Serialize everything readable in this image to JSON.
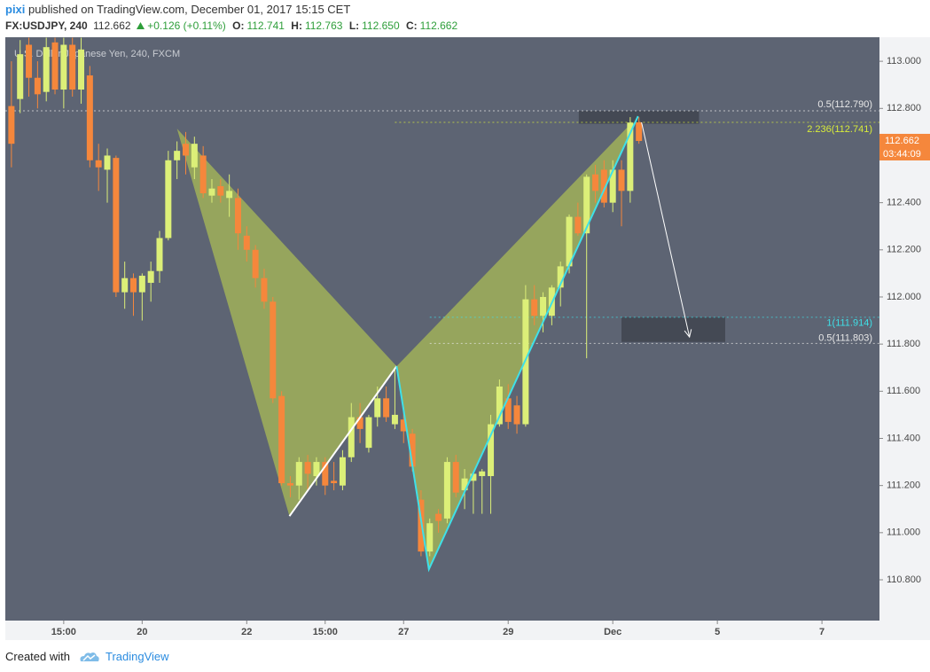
{
  "header": {
    "author": "pixi",
    "published": "published on TradingView.com, December 01, 2017 15:15 CET",
    "symbol": "FX:USDJPY, 240",
    "last": "112.662",
    "change": "+0.126 (+0.11%)",
    "ohlc": [
      {
        "label": "O:",
        "value": "112.741"
      },
      {
        "label": "H:",
        "value": "112.763"
      },
      {
        "label": "L:",
        "value": "112.650"
      },
      {
        "label": "C:",
        "value": "112.662"
      }
    ]
  },
  "chart_data": {
    "type": "candlestick",
    "title": "U.S. Dollar/Japanese Yen, 240, FXCM",
    "up_color": "#dcef78",
    "down_color": "#f5873c",
    "background": "#5d6473",
    "xlim": [
      -0.7,
      99.6
    ],
    "ylim": [
      110.627,
      113.102
    ],
    "xticks": [
      {
        "value": 6,
        "label": "15:00"
      },
      {
        "value": 15,
        "label": "20"
      },
      {
        "value": 27,
        "label": "22"
      },
      {
        "value": 36,
        "label": "15:00"
      },
      {
        "value": 45,
        "label": "27"
      },
      {
        "value": 57,
        "label": "29"
      },
      {
        "value": 69,
        "label": "Dec"
      },
      {
        "value": 81,
        "label": "5"
      },
      {
        "value": 93,
        "label": "7"
      }
    ],
    "yticks": [
      {
        "value": 110.8,
        "label": "110.800"
      },
      {
        "value": 111.0,
        "label": "111.000"
      },
      {
        "value": 111.2,
        "label": "111.200"
      },
      {
        "value": 111.4,
        "label": "111.400"
      },
      {
        "value": 111.6,
        "label": "111.600"
      },
      {
        "value": 111.8,
        "label": "111.800"
      },
      {
        "value": 112.0,
        "label": "112.000"
      },
      {
        "value": 112.2,
        "label": "112.200"
      },
      {
        "value": 112.4,
        "label": "112.400"
      },
      {
        "value": 112.6,
        "label": "112.600"
      },
      {
        "value": 112.8,
        "label": "112.800"
      },
      {
        "value": 113.0,
        "label": "113.000"
      }
    ],
    "open": [
      112.81,
      112.84,
      113.07,
      112.93,
      112.87,
      113.08,
      112.88,
      113.07,
      112.88,
      112.94,
      112.58,
      112.54,
      112.59,
      112.02,
      112.08,
      112.02,
      112.06,
      112.11,
      112.25,
      112.58,
      112.65,
      112.55,
      112.6,
      112.43,
      112.47,
      112.42,
      112.42,
      112.26,
      112.2,
      112.08,
      111.98,
      111.58,
      111.21,
      111.2,
      111.3,
      111.24,
      111.3,
      111.22,
      111.2,
      111.32,
      111.49,
      111.36,
      111.49,
      111.57,
      111.46,
      111.48,
      111.42,
      111.14,
      110.92,
      111.08,
      111.06,
      111.3,
      111.18,
      111.22,
      111.24,
      111.24,
      111.46,
      111.57,
      111.54,
      111.46,
      111.99,
      111.92,
      111.92,
      112.04,
      112.13,
      112.34,
      112.27,
      112.52,
      112.54,
      112.4,
      112.54,
      112.45,
      112.741
    ],
    "high": [
      113.0,
      113.09,
      113.1,
      113.0,
      113.1,
      113.1,
      113.1,
      113.1,
      113.1,
      112.98,
      112.65,
      112.63,
      112.6,
      112.15,
      112.1,
      112.1,
      112.15,
      112.28,
      112.62,
      112.66,
      112.7,
      112.68,
      112.64,
      112.5,
      112.5,
      112.52,
      112.46,
      112.3,
      112.22,
      112.12,
      112.0,
      111.6,
      111.24,
      111.32,
      111.33,
      111.32,
      111.32,
      111.3,
      111.35,
      111.55,
      111.55,
      111.5,
      111.62,
      111.62,
      111.7,
      111.52,
      111.44,
      111.18,
      111.06,
      111.1,
      111.32,
      111.33,
      111.27,
      111.26,
      111.27,
      111.5,
      111.65,
      111.63,
      111.58,
      112.05,
      112.05,
      112.02,
      112.05,
      112.15,
      112.35,
      112.4,
      112.52,
      112.56,
      112.58,
      112.58,
      112.58,
      112.763,
      112.763
    ],
    "low": [
      112.55,
      112.78,
      112.85,
      112.8,
      112.83,
      112.86,
      112.8,
      112.85,
      112.82,
      112.55,
      112.45,
      112.4,
      112.0,
      111.95,
      111.92,
      111.9,
      111.98,
      112.06,
      112.24,
      112.5,
      112.52,
      112.5,
      112.42,
      112.4,
      112.4,
      112.34,
      112.2,
      112.15,
      112.04,
      111.95,
      111.55,
      111.2,
      111.15,
      111.14,
      111.18,
      111.2,
      111.16,
      111.18,
      111.18,
      111.3,
      111.38,
      111.34,
      111.45,
      111.47,
      111.44,
      111.38,
      111.26,
      110.9,
      110.9,
      111.0,
      111.04,
      111.15,
      111.1,
      111.08,
      111.08,
      111.08,
      111.45,
      111.44,
      111.42,
      111.45,
      111.88,
      111.85,
      111.88,
      111.96,
      112.1,
      112.26,
      111.74,
      112.4,
      112.38,
      112.36,
      112.3,
      112.4,
      112.65
    ],
    "close": [
      112.65,
      113.03,
      112.93,
      112.86,
      113.06,
      112.88,
      113.07,
      112.88,
      113.05,
      112.58,
      112.55,
      112.6,
      112.02,
      112.08,
      112.02,
      112.09,
      112.11,
      112.25,
      112.58,
      112.62,
      112.6,
      112.65,
      112.44,
      112.46,
      112.43,
      112.45,
      112.27,
      112.2,
      112.08,
      111.98,
      111.57,
      111.21,
      111.2,
      111.3,
      111.25,
      111.3,
      111.2,
      111.21,
      111.32,
      111.49,
      111.44,
      111.49,
      111.57,
      111.49,
      111.5,
      111.43,
      111.28,
      110.92,
      111.04,
      111.05,
      111.3,
      111.17,
      111.23,
      111.25,
      111.26,
      111.46,
      111.62,
      111.47,
      111.46,
      111.99,
      111.92,
      112.0,
      112.04,
      112.13,
      112.34,
      112.27,
      112.51,
      112.45,
      112.4,
      112.54,
      112.45,
      112.74,
      112.662
    ],
    "pattern": {
      "x": [
        19.0,
        31.9,
        44.2,
        47.9,
        71.9
      ],
      "y": [
        112.714,
        111.07,
        111.706,
        110.845,
        112.767
      ],
      "fill": "#a9bb55",
      "leg_color": "#ffffff",
      "tail_color": "#3fe0e8"
    },
    "arrow": {
      "x": [
        72.3,
        77.8
      ],
      "y": [
        112.741,
        111.83
      ],
      "color": "#ffffff"
    },
    "zones": [
      {
        "x": [
          65.1,
          78.9
        ],
        "y": [
          112.79,
          112.735
        ],
        "color": "#40444f"
      },
      {
        "x": [
          70.0,
          81.9
        ],
        "y": [
          111.914,
          111.809
        ],
        "color": "#40444f"
      }
    ],
    "levels": [
      {
        "label": "0.5(112.790)",
        "value": 112.79,
        "start": -0.7,
        "color": "#e8e8e8"
      },
      {
        "label": "2.236(112.741)",
        "value": 112.741,
        "start": 44.0,
        "color": "#d8ec3a"
      },
      {
        "label": "1(111.914)",
        "value": 111.914,
        "start": 48.0,
        "color": "#3fe0e8"
      },
      {
        "label": "0.5(111.803)",
        "value": 111.803,
        "start": 48.0,
        "color": "#e8e8e8"
      }
    ],
    "last_price": {
      "value": 112.662,
      "label": "112.662",
      "countdown": "03:44:09",
      "color": "#f5873c"
    }
  },
  "footer": {
    "created": "Created with",
    "brand": "TradingView"
  }
}
